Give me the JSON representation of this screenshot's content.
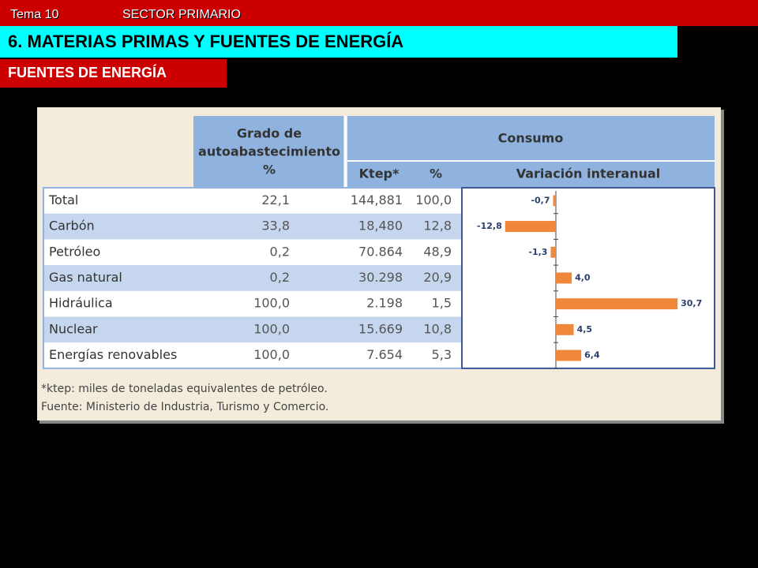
{
  "header": {
    "topic": "Tema 10",
    "sector": "SECTOR PRIMARIO",
    "title": "6. MATERIAS PRIMAS Y FUENTES DE ENERGÍA",
    "subtitle": "FUENTES DE ENERGÍA"
  },
  "table": {
    "self_supply_header": [
      "Grado de",
      "autoabastecimiento",
      "%"
    ],
    "consumption_header": "Consumo",
    "columns": [
      "Ktep*",
      "%",
      "Variación interanual"
    ],
    "rows": [
      [
        "Total",
        "22,1",
        "144,881",
        "100,0"
      ],
      [
        "Carbón",
        "33,8",
        "18,480",
        "12,8"
      ],
      [
        "Petróleo",
        "0,2",
        "70.864",
        "48,9"
      ],
      [
        "Gas natural",
        "0,2",
        "30.298",
        "20,9"
      ],
      [
        "Hidráulica",
        "100,0",
        "2.198",
        "1,5"
      ],
      [
        "Nuclear",
        "100,0",
        "15.669",
        "10,8"
      ],
      [
        "Energías renovables",
        "100,0",
        "7.654",
        "5,3"
      ]
    ],
    "variation": {
      "values": [
        -0.7,
        -12.8,
        -1.3,
        4.0,
        30.7,
        4.5,
        6.4
      ],
      "value_labels": [
        "-0,7",
        "-12,8",
        "-1,3",
        "4,0",
        "30,7",
        "4,5",
        "6,4"
      ],
      "color": "#f0883c"
    }
  },
  "notes": [
    "*ktep: miles de toneladas equivalentes de petróleo.",
    "Fuente: Ministerio de Industria, Turismo y Comercio."
  ]
}
